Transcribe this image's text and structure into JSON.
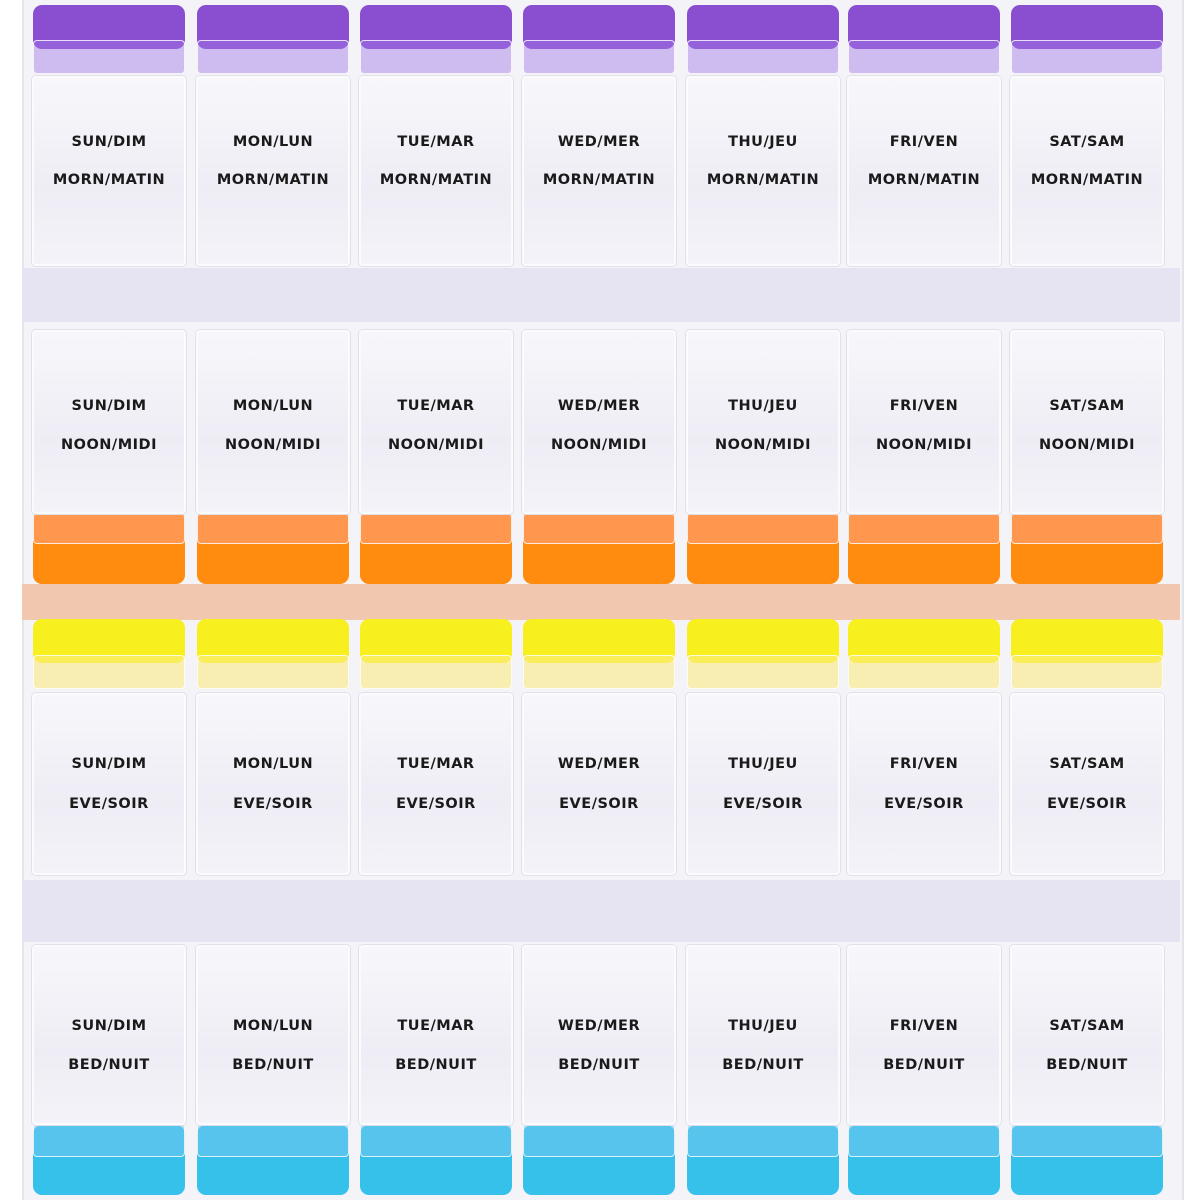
{
  "days": [
    "SUN/DIM",
    "MON/LUN",
    "TUE/MAR",
    "WED/MER",
    "THU/JEU",
    "FRI/VEN",
    "SAT/SAM"
  ],
  "rows": [
    {
      "time": "MORN/MATIN",
      "color": "#8a4fd0"
    },
    {
      "time": "NOON/MIDI",
      "color": "#ff8c0f"
    },
    {
      "time": "EVE/SOIR",
      "color": "#f7ef1e"
    },
    {
      "time": "BED/NUIT",
      "color": "#35c1ea"
    }
  ]
}
